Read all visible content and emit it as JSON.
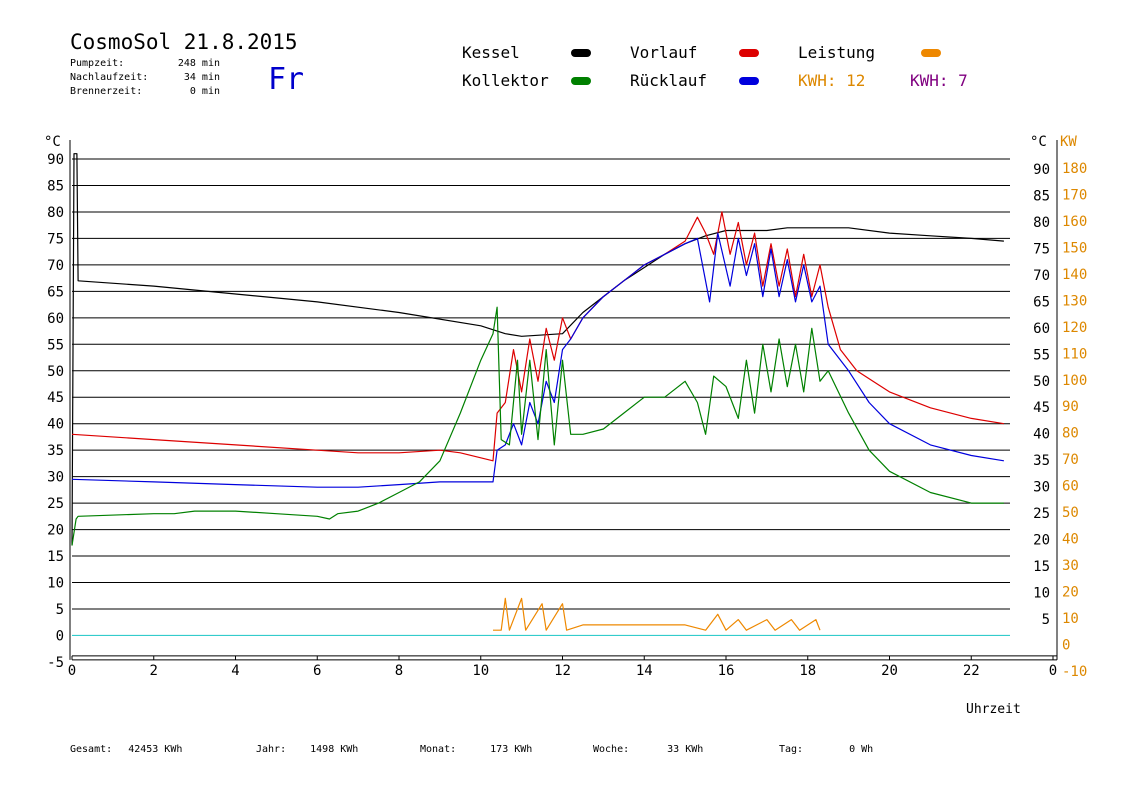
{
  "header": {
    "title": "CosmoSol 21.8.2015",
    "day": "Fr",
    "stats": [
      {
        "label": "Pumpzeit:",
        "value": "248 min"
      },
      {
        "label": "Nachlaufzeit:",
        "value": "34 min"
      },
      {
        "label": "Brennerzeit:",
        "value": "0 min"
      }
    ]
  },
  "legend": {
    "items": [
      {
        "label": "Kessel",
        "color": "#000000"
      },
      {
        "label": "Vorlauf",
        "color": "#dd0000"
      },
      {
        "label": "Leistung",
        "color": "#ee8800"
      },
      {
        "label": "Kollektor",
        "color": "#008000"
      },
      {
        "label": "Rücklauf",
        "color": "#0000dd"
      }
    ],
    "kwh": [
      {
        "label": "KWH: 12",
        "color": "#dd8800"
      },
      {
        "label": "KWH: 7",
        "color": "#800080"
      }
    ]
  },
  "footer": [
    {
      "label": "Gesamt:",
      "value": "42453 KWh"
    },
    {
      "label": "Jahr:",
      "value": "1498 KWh"
    },
    {
      "label": "Monat:",
      "value": "173 KWh"
    },
    {
      "label": "Woche:",
      "value": "33 KWh"
    },
    {
      "label": "Tag:",
      "value": "0 Wh"
    }
  ],
  "chart_data": {
    "type": "line",
    "xlabel": "Uhrzeit",
    "ylabel": "°C",
    "ylabel_right": "KW",
    "xlim": [
      0,
      24
    ],
    "ylim": [
      -5,
      95
    ],
    "x_ticks": [
      "0",
      "2",
      "4",
      "6",
      "8",
      "10",
      "12",
      "14",
      "16",
      "18",
      "20",
      "22",
      "0"
    ],
    "y_ticks_left": [
      "90",
      "85",
      "80",
      "75",
      "70",
      "65",
      "60",
      "55",
      "50",
      "45",
      "40",
      "35",
      "30",
      "25",
      "20",
      "15",
      "10",
      "5",
      "0",
      "-5"
    ],
    "y_ticks_right_c": [
      "90",
      "85",
      "80",
      "75",
      "70",
      "65",
      "60",
      "55",
      "50",
      "45",
      "40",
      "35",
      "30",
      "25",
      "20",
      "15",
      "10",
      "5"
    ],
    "y_ticks_right_kw": [
      "180",
      "170",
      "160",
      "150",
      "140",
      "130",
      "120",
      "110",
      "100",
      "90",
      "80",
      "70",
      "60",
      "50",
      "40",
      "30",
      "20",
      "10",
      "0",
      "-10"
    ],
    "grid": true,
    "series": [
      {
        "name": "Kessel",
        "color": "#000000",
        "points": [
          [
            0,
            17
          ],
          [
            0.05,
            91
          ],
          [
            0.12,
            91
          ],
          [
            0.15,
            67
          ],
          [
            2,
            66
          ],
          [
            4,
            64.5
          ],
          [
            6,
            63
          ],
          [
            8,
            61
          ],
          [
            10,
            58.5
          ],
          [
            10.6,
            57
          ],
          [
            11,
            56.5
          ],
          [
            12,
            57
          ],
          [
            12.5,
            61
          ],
          [
            13,
            64
          ],
          [
            13.5,
            67
          ],
          [
            14,
            69.5
          ],
          [
            14.5,
            72
          ],
          [
            15,
            74
          ],
          [
            15.5,
            75.5
          ],
          [
            16,
            76.5
          ],
          [
            16.5,
            76.5
          ],
          [
            17,
            76.5
          ],
          [
            17.5,
            77
          ],
          [
            18,
            77
          ],
          [
            18.5,
            77
          ],
          [
            19,
            77
          ],
          [
            20,
            76
          ],
          [
            21,
            75.5
          ],
          [
            22,
            75
          ],
          [
            22.8,
            74.5
          ]
        ]
      },
      {
        "name": "Vorlauf",
        "color": "#dd0000",
        "points": [
          [
            0,
            38
          ],
          [
            2,
            37
          ],
          [
            4,
            36
          ],
          [
            6,
            35
          ],
          [
            7,
            34.5
          ],
          [
            8,
            34.5
          ],
          [
            9,
            35
          ],
          [
            9.5,
            34.5
          ],
          [
            10.3,
            33
          ],
          [
            10.4,
            42
          ],
          [
            10.6,
            44
          ],
          [
            10.8,
            54
          ],
          [
            11,
            46
          ],
          [
            11.2,
            56
          ],
          [
            11.4,
            48
          ],
          [
            11.6,
            58
          ],
          [
            11.8,
            52
          ],
          [
            12,
            60
          ],
          [
            12.2,
            56
          ],
          [
            12.5,
            60
          ],
          [
            13,
            64
          ],
          [
            13.5,
            67
          ],
          [
            14,
            70
          ],
          [
            14.5,
            72
          ],
          [
            15,
            74.5
          ],
          [
            15.3,
            79
          ],
          [
            15.5,
            76
          ],
          [
            15.7,
            72
          ],
          [
            15.9,
            80
          ],
          [
            16.1,
            72
          ],
          [
            16.3,
            78
          ],
          [
            16.5,
            70
          ],
          [
            16.7,
            76
          ],
          [
            16.9,
            66
          ],
          [
            17.1,
            74
          ],
          [
            17.3,
            66
          ],
          [
            17.5,
            73
          ],
          [
            17.7,
            64
          ],
          [
            17.9,
            72
          ],
          [
            18.1,
            64
          ],
          [
            18.3,
            70
          ],
          [
            18.5,
            62
          ],
          [
            18.8,
            54
          ],
          [
            19.2,
            50
          ],
          [
            20,
            46
          ],
          [
            21,
            43
          ],
          [
            22,
            41
          ],
          [
            22.8,
            40
          ]
        ]
      },
      {
        "name": "Rücklauf",
        "color": "#0000dd",
        "points": [
          [
            0,
            29.5
          ],
          [
            2,
            29
          ],
          [
            4,
            28.5
          ],
          [
            6,
            28
          ],
          [
            7,
            28
          ],
          [
            8,
            28.5
          ],
          [
            9,
            29
          ],
          [
            10.3,
            29
          ],
          [
            10.4,
            35
          ],
          [
            10.6,
            36
          ],
          [
            10.8,
            40
          ],
          [
            11,
            36
          ],
          [
            11.2,
            44
          ],
          [
            11.4,
            40
          ],
          [
            11.6,
            48
          ],
          [
            11.8,
            44
          ],
          [
            12,
            54
          ],
          [
            12.2,
            56
          ],
          [
            12.5,
            60
          ],
          [
            13,
            64
          ],
          [
            13.5,
            67
          ],
          [
            14,
            70
          ],
          [
            14.5,
            72
          ],
          [
            15,
            74
          ],
          [
            15.3,
            75
          ],
          [
            15.6,
            63
          ],
          [
            15.8,
            76
          ],
          [
            16.1,
            66
          ],
          [
            16.3,
            75
          ],
          [
            16.5,
            68
          ],
          [
            16.7,
            74
          ],
          [
            16.9,
            64
          ],
          [
            17.1,
            73
          ],
          [
            17.3,
            64
          ],
          [
            17.5,
            71
          ],
          [
            17.7,
            63
          ],
          [
            17.9,
            70
          ],
          [
            18.1,
            63
          ],
          [
            18.3,
            66
          ],
          [
            18.5,
            55
          ],
          [
            19,
            50
          ],
          [
            19.5,
            44
          ],
          [
            20,
            40
          ],
          [
            21,
            36
          ],
          [
            22,
            34
          ],
          [
            22.8,
            33
          ]
        ]
      },
      {
        "name": "Kollektor",
        "color": "#008000",
        "points": [
          [
            0,
            17
          ],
          [
            0.1,
            22
          ],
          [
            0.15,
            22.5
          ],
          [
            2,
            23
          ],
          [
            2.5,
            23
          ],
          [
            3,
            23.5
          ],
          [
            4,
            23.5
          ],
          [
            5,
            23
          ],
          [
            6,
            22.5
          ],
          [
            6.3,
            22
          ],
          [
            6.5,
            23
          ],
          [
            7,
            23.5
          ],
          [
            7.5,
            25
          ],
          [
            8,
            27
          ],
          [
            8.5,
            29
          ],
          [
            9,
            33
          ],
          [
            9.5,
            42
          ],
          [
            10,
            52
          ],
          [
            10.3,
            57
          ],
          [
            10.4,
            62
          ],
          [
            10.5,
            37
          ],
          [
            10.7,
            36
          ],
          [
            10.9,
            52
          ],
          [
            11,
            38
          ],
          [
            11.2,
            52
          ],
          [
            11.4,
            37
          ],
          [
            11.6,
            54
          ],
          [
            11.8,
            36
          ],
          [
            12,
            52
          ],
          [
            12.2,
            38
          ],
          [
            12.5,
            38
          ],
          [
            13,
            39
          ],
          [
            13.5,
            42
          ],
          [
            14,
            45
          ],
          [
            14.5,
            45
          ],
          [
            15,
            48
          ],
          [
            15.3,
            44
          ],
          [
            15.5,
            38
          ],
          [
            15.7,
            49
          ],
          [
            16,
            47
          ],
          [
            16.3,
            41
          ],
          [
            16.5,
            52
          ],
          [
            16.7,
            42
          ],
          [
            16.9,
            55
          ],
          [
            17.1,
            46
          ],
          [
            17.3,
            56
          ],
          [
            17.5,
            47
          ],
          [
            17.7,
            55
          ],
          [
            17.9,
            46
          ],
          [
            18.1,
            58
          ],
          [
            18.3,
            48
          ],
          [
            18.5,
            50
          ],
          [
            19,
            42
          ],
          [
            19.5,
            35
          ],
          [
            20,
            31
          ],
          [
            21,
            27
          ],
          [
            22,
            25
          ],
          [
            22.8,
            25
          ]
        ]
      },
      {
        "name": "Leistung",
        "color": "#ee8800",
        "points": [
          [
            10.3,
            1
          ],
          [
            10.5,
            1
          ],
          [
            10.6,
            7
          ],
          [
            10.7,
            1
          ],
          [
            11,
            7
          ],
          [
            11.1,
            1
          ],
          [
            11.5,
            6
          ],
          [
            11.6,
            1
          ],
          [
            12,
            6
          ],
          [
            12.1,
            1
          ],
          [
            12.5,
            2
          ],
          [
            13,
            2
          ],
          [
            14,
            2
          ],
          [
            15,
            2
          ],
          [
            15.5,
            1
          ],
          [
            15.8,
            4
          ],
          [
            16,
            1
          ],
          [
            16.3,
            3
          ],
          [
            16.5,
            1
          ],
          [
            17,
            3
          ],
          [
            17.2,
            1
          ],
          [
            17.6,
            3
          ],
          [
            17.8,
            1
          ],
          [
            18.2,
            3
          ],
          [
            18.3,
            1
          ]
        ]
      }
    ]
  }
}
